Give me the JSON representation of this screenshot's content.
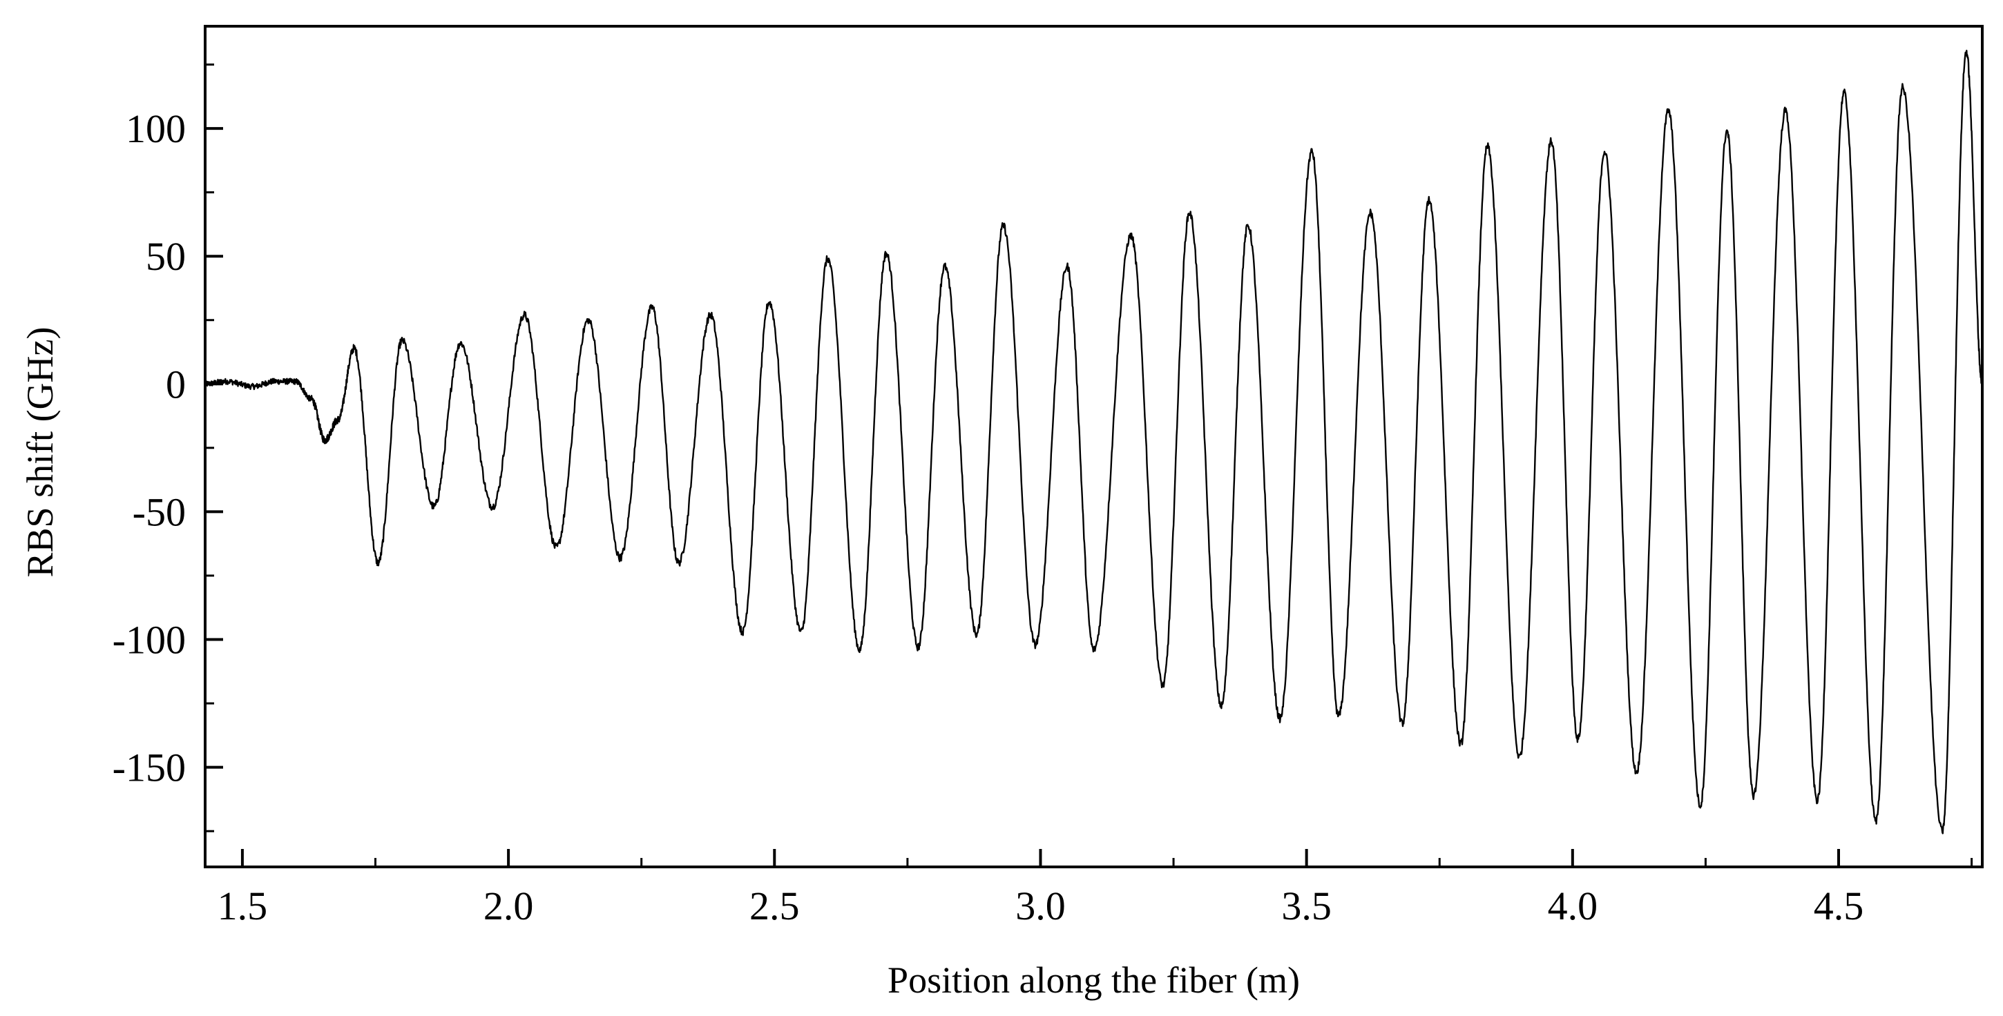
{
  "chart_data": {
    "type": "line",
    "title": "",
    "xlabel": "Position along the fiber (m)",
    "ylabel": "RBS shift (GHz)",
    "xlim": [
      1.43,
      4.77
    ],
    "ylim": [
      -189,
      140
    ],
    "x_ticks": [
      {
        "value": 1.5,
        "label": "1.5"
      },
      {
        "value": 2.0,
        "label": "2.0"
      },
      {
        "value": 2.5,
        "label": "2.5"
      },
      {
        "value": 3.0,
        "label": "3.0"
      },
      {
        "value": 3.5,
        "label": "3.5"
      },
      {
        "value": 4.0,
        "label": "4.0"
      },
      {
        "value": 4.5,
        "label": "4.5"
      }
    ],
    "y_ticks": [
      {
        "value": 100,
        "label": "100"
      },
      {
        "value": 50,
        "label": "50"
      },
      {
        "value": 0,
        "label": "0"
      },
      {
        "value": -50,
        "label": "-50"
      },
      {
        "value": -100,
        "label": "-100"
      },
      {
        "value": -150,
        "label": "-150"
      }
    ],
    "grid": false,
    "legend": "none",
    "line_color": "#000000",
    "series": [
      {
        "points": [
          [
            1.43,
            0
          ],
          [
            1.47,
            1
          ],
          [
            1.52,
            -1
          ],
          [
            1.56,
            1
          ],
          [
            1.6,
            1
          ],
          [
            1.63,
            -6
          ],
          [
            1.655,
            -22
          ],
          [
            1.68,
            -14
          ],
          [
            1.71,
            14
          ],
          [
            1.755,
            -70
          ],
          [
            1.8,
            17
          ],
          [
            1.86,
            -48
          ],
          [
            1.91,
            16
          ],
          [
            1.97,
            -48
          ],
          [
            2.03,
            27
          ],
          [
            2.09,
            -64
          ],
          [
            2.15,
            25
          ],
          [
            2.21,
            -68
          ],
          [
            2.27,
            30
          ],
          [
            2.32,
            -70
          ],
          [
            2.38,
            27
          ],
          [
            2.44,
            -97
          ],
          [
            2.49,
            32
          ],
          [
            2.55,
            -97
          ],
          [
            2.6,
            49
          ],
          [
            2.66,
            -104
          ],
          [
            2.71,
            51
          ],
          [
            2.77,
            -103
          ],
          [
            2.82,
            46
          ],
          [
            2.88,
            -98
          ],
          [
            2.93,
            62
          ],
          [
            2.99,
            -102
          ],
          [
            3.05,
            46
          ],
          [
            3.1,
            -104
          ],
          [
            3.17,
            58
          ],
          [
            3.23,
            -118
          ],
          [
            3.28,
            67
          ],
          [
            3.34,
            -126
          ],
          [
            3.39,
            62
          ],
          [
            3.45,
            -131
          ],
          [
            3.51,
            91
          ],
          [
            3.56,
            -130
          ],
          [
            3.62,
            67
          ],
          [
            3.68,
            -133
          ],
          [
            3.73,
            72
          ],
          [
            3.79,
            -141
          ],
          [
            3.84,
            93
          ],
          [
            3.9,
            -146
          ],
          [
            3.96,
            95
          ],
          [
            4.01,
            -139
          ],
          [
            4.06,
            91
          ],
          [
            4.12,
            -152
          ],
          [
            4.18,
            107
          ],
          [
            4.24,
            -165
          ],
          [
            4.29,
            99
          ],
          [
            4.34,
            -161
          ],
          [
            4.4,
            107
          ],
          [
            4.46,
            -163
          ],
          [
            4.51,
            114
          ],
          [
            4.57,
            -171
          ],
          [
            4.62,
            116
          ],
          [
            4.695,
            -175
          ],
          [
            4.74,
            130
          ],
          [
            4.77,
            0
          ]
        ]
      }
    ]
  }
}
